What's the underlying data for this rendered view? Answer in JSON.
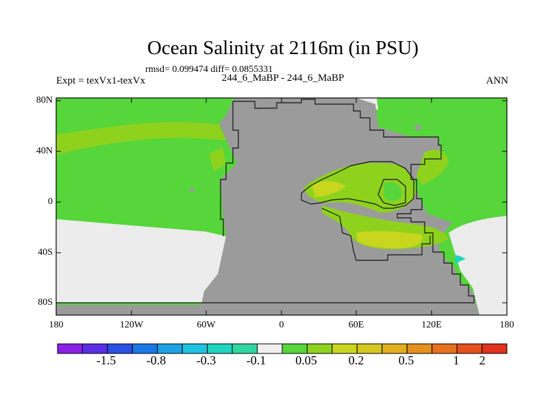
{
  "title": "Ocean Salinity at 2116m (in PSU)",
  "subtitle_stats": "rmsd= 0.099474 diff= 0.0855331",
  "left_label": "Expt = texVx1-texVx",
  "center_label": "244_6_MaBP - 244_6_MaBP",
  "right_label": "ANN",
  "y_ticks": [
    "80N",
    "40N",
    "0",
    "40S",
    "80S"
  ],
  "x_ticks": [
    "180",
    "120W",
    "60W",
    "0",
    "60E",
    "120E",
    "180"
  ],
  "colorbar": {
    "colors": [
      "#8a1fe6",
      "#5a2ee6",
      "#2a50e6",
      "#1a78e6",
      "#1da2e6",
      "#1ec3e0",
      "#1ed6c0",
      "#2ed8a0",
      "#f0f0f0",
      "#56d63a",
      "#8ed21e",
      "#c8d61e",
      "#d6c81e",
      "#e0ae1e",
      "#e6901e",
      "#e6701e",
      "#e64f1e",
      "#e0301e"
    ],
    "labels": [
      "-1.5",
      "-0.8",
      "-0.3",
      "-0.1",
      "0.05",
      "0.2",
      "0.5",
      "1",
      "2"
    ]
  },
  "colors": {
    "land": "#9b9b9b",
    "missing": "#ececec",
    "green": "#56d63a",
    "yellow_green": "#8ed21e",
    "yellow": "#c8d61e",
    "cyan": "#1ed6c0"
  }
}
